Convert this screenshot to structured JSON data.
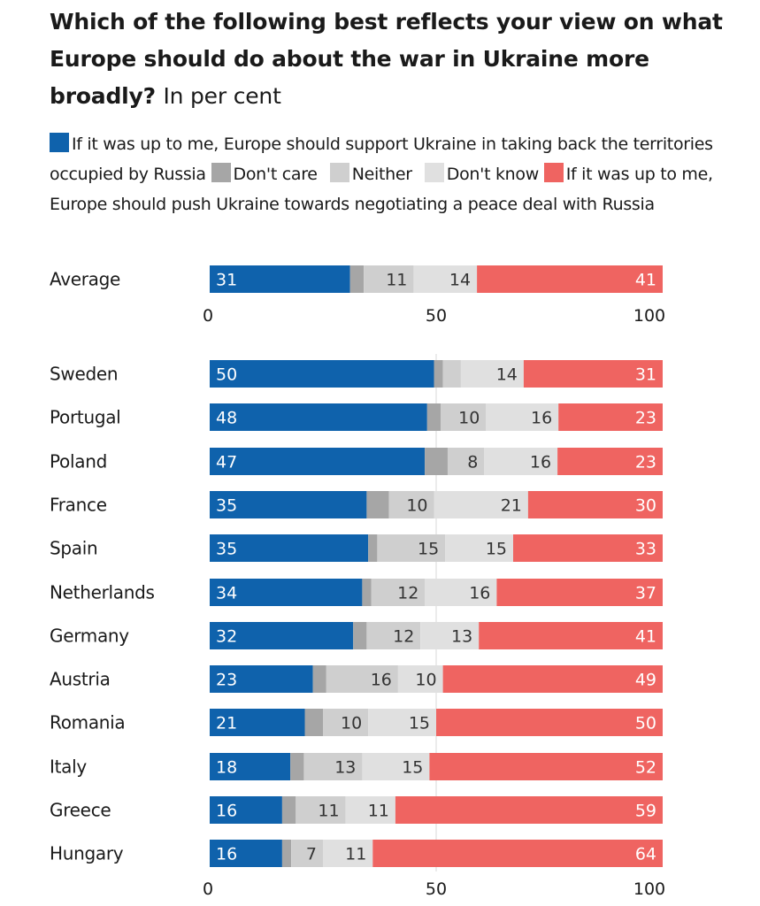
{
  "title": {
    "main": "Which of the following best reflects your view on what Europe should do about the war in Ukraine more broadly?",
    "sub": "In per cent"
  },
  "legend": [
    {
      "key": "support",
      "label": "If it was up to me, Europe should support Ukraine in taking back the territories occupied by Russia",
      "color": "#0f62ac"
    },
    {
      "key": "dontcare",
      "label": "Don't care",
      "color": "#a6a6a6"
    },
    {
      "key": "neither",
      "label": "Neither",
      "color": "#cfcfcf"
    },
    {
      "key": "dontknow",
      "label": "Don't know",
      "color": "#e0e0e0"
    },
    {
      "key": "negotiate",
      "label": "If it was up to me, Europe should push Ukraine towards negotiating a peace deal with Russia",
      "color": "#ef6461"
    }
  ],
  "chart_data": {
    "type": "bar",
    "orientation": "horizontal",
    "stacked": true,
    "xlim": [
      0,
      100
    ],
    "ticks": [
      0,
      50,
      100
    ],
    "series": [
      {
        "name": "If it was up to me, Europe should support Ukraine in taking back the territories occupied by Russia",
        "color": "#0f62ac"
      },
      {
        "name": "Don't care",
        "color": "#a6a6a6"
      },
      {
        "name": "Neither",
        "color": "#cfcfcf"
      },
      {
        "name": "Don't know",
        "color": "#e0e0e0"
      },
      {
        "name": "If it was up to me, Europe should push Ukraine towards negotiating a peace deal with Russia",
        "color": "#ef6461"
      }
    ],
    "average": {
      "category": "Average",
      "values": [
        31,
        3,
        11,
        14,
        41
      ]
    },
    "categories": [
      "Sweden",
      "Portugal",
      "Poland",
      "France",
      "Spain",
      "Netherlands",
      "Germany",
      "Austria",
      "Romania",
      "Italy",
      "Greece",
      "Hungary"
    ],
    "values": [
      [
        50,
        2,
        4,
        14,
        31
      ],
      [
        48,
        3,
        10,
        16,
        23
      ],
      [
        47,
        5,
        8,
        16,
        23
      ],
      [
        35,
        5,
        10,
        21,
        30
      ],
      [
        35,
        2,
        15,
        15,
        33
      ],
      [
        34,
        2,
        12,
        16,
        37
      ],
      [
        32,
        3,
        12,
        13,
        41
      ],
      [
        23,
        3,
        16,
        10,
        49
      ],
      [
        21,
        4,
        10,
        15,
        50
      ],
      [
        18,
        3,
        13,
        15,
        52
      ],
      [
        16,
        3,
        11,
        11,
        59
      ],
      [
        16,
        2,
        7,
        11,
        64
      ]
    ],
    "labels": [
      [
        "50",
        "",
        "",
        "14",
        "31"
      ],
      [
        "48",
        "",
        "10",
        "16",
        "23"
      ],
      [
        "47",
        "",
        "8",
        "16",
        "23"
      ],
      [
        "35",
        "",
        "10",
        "21",
        "30"
      ],
      [
        "35",
        "",
        "15",
        "15",
        "33"
      ],
      [
        "34",
        "",
        "12",
        "16",
        "37"
      ],
      [
        "32",
        "",
        "12",
        "13",
        "41"
      ],
      [
        "23",
        "",
        "16",
        "10",
        "49"
      ],
      [
        "21",
        "",
        "10",
        "15",
        "50"
      ],
      [
        "18",
        "",
        "13",
        "15",
        "52"
      ],
      [
        "16",
        "",
        "11",
        "11",
        "59"
      ],
      [
        "16",
        "",
        "7",
        "11",
        "64"
      ]
    ],
    "average_labels": [
      "31",
      "",
      "11",
      "14",
      "41"
    ]
  }
}
